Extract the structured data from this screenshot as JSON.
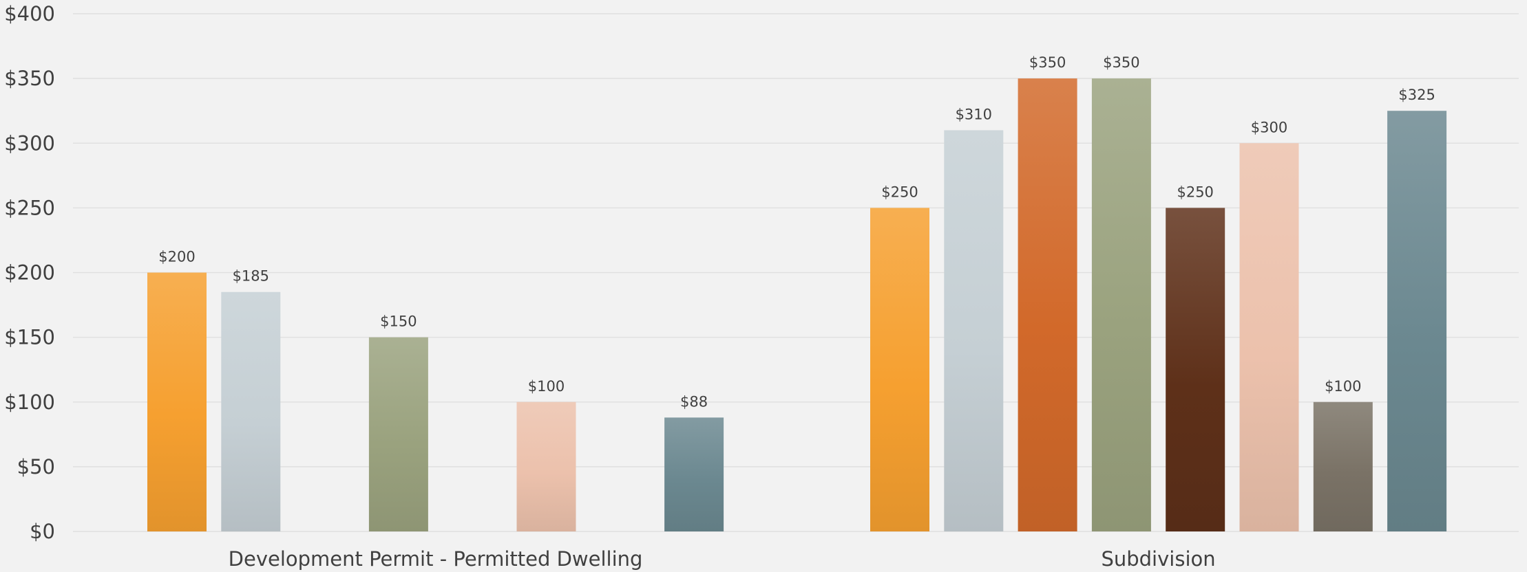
{
  "chart_data": {
    "type": "bar",
    "title": "",
    "xlabel": "",
    "ylabel": "",
    "ylim": [
      0,
      400
    ],
    "yticks": [
      "$0",
      "$50",
      "$100",
      "$150",
      "$200",
      "$250",
      "$300",
      "$350",
      "$400"
    ],
    "grid": true,
    "legend": "none",
    "groups": [
      {
        "label": "Development Permit  - Permitted Dwelling",
        "bars": [
          {
            "value": 200,
            "label": "$200",
            "color": "#f6a030"
          },
          {
            "value": 185,
            "label": "$185",
            "color": "#c5cfd4"
          },
          {
            "value": null,
            "label": "",
            "color": "#d2692a"
          },
          {
            "value": 150,
            "label": "$150",
            "color": "#9aa27e"
          },
          {
            "value": null,
            "label": "",
            "color": "#5e3019"
          },
          {
            "value": 100,
            "label": "$100",
            "color": "#ecc1ac"
          },
          {
            "value": null,
            "label": "",
            "color": "#7a7266"
          },
          {
            "value": 88,
            "label": "$88",
            "color": "#6b8890"
          }
        ]
      },
      {
        "label": "Subdivision",
        "bars": [
          {
            "value": 250,
            "label": "$250",
            "color": "#f6a030"
          },
          {
            "value": 310,
            "label": "$310",
            "color": "#c5cfd4"
          },
          {
            "value": 350,
            "label": "$350",
            "color": "#d2692a"
          },
          {
            "value": 350,
            "label": "$350",
            "color": "#9aa27e"
          },
          {
            "value": 250,
            "label": "$250",
            "color": "#5e3019"
          },
          {
            "value": 300,
            "label": "$300",
            "color": "#ecc1ac"
          },
          {
            "value": 100,
            "label": "$100",
            "color": "#7a7266"
          },
          {
            "value": 325,
            "label": "$325",
            "color": "#6b8890"
          }
        ]
      }
    ]
  }
}
